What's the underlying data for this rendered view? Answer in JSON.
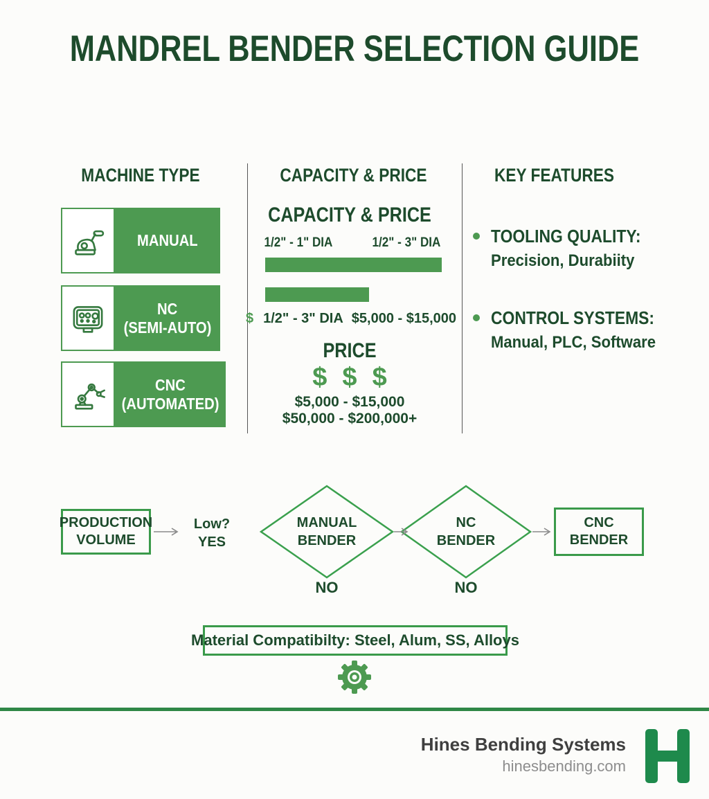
{
  "title": "MANDREL BENDER SELECTION GUIDE",
  "colors": {
    "dark_green": "#1d4b2c",
    "mid_green": "#4d9a51",
    "bright_green": "#3a9a4a",
    "logo_green": "#1e8a4c",
    "footer_line_green": "#2f8746",
    "footer_text_gray": "#3f3f3f",
    "footer_site_gray": "#8d8d8d",
    "arrow_gray": "#8a8a8a"
  },
  "machine_type": {
    "header": "MACHINE TYPE",
    "rows": [
      {
        "icon": "hand-crank-bender-icon",
        "line1": "MANUAL",
        "line2": ""
      },
      {
        "icon": "control-panel-icon",
        "line1": "NC",
        "line2": "(SEMI-AUTO)"
      },
      {
        "icon": "robot-arm-icon",
        "line1": "CNC",
        "line2": "(AUTOMATED)"
      }
    ]
  },
  "capacity": {
    "header": "CAPACITY & PRICE",
    "subheader": "CAPACITY & PRICE",
    "dia_left": "1/2\" - 1\" DIA",
    "dia_right": "1/2\" - 3\" DIA",
    "bar1_width": 255,
    "bar2_width": 150,
    "combo_dollar": "$",
    "combo_dia": "1/2\" - 3\" DIA",
    "combo_price": "$5,000 - $15,000",
    "price_header": "PRICE",
    "dollars": [
      "$",
      "$",
      "$"
    ],
    "price_range_1": "$5,000 - $15,000",
    "price_range_2": "$50,000 - $200,000+"
  },
  "key_features": {
    "header": "KEY FEATURES",
    "items": [
      {
        "title": "TOOLING QUALITY:",
        "desc": "Precision, Durabiity"
      },
      {
        "title": "CONTROL SYSTEMS:",
        "desc": "Manual, PLC, Software"
      }
    ]
  },
  "flowchart": {
    "start_line1": "PRODUCTION",
    "start_line2": "VOLUME",
    "condition_line1": "Low?",
    "condition_line2": "YES",
    "diamond1_line1": "MANUAL",
    "diamond1_line2": "BENDER",
    "diamond1_no": "NO",
    "diamond2_line1": "NC",
    "diamond2_line2": "BENDER",
    "diamond2_no": "NO",
    "end_line1": "CNC",
    "end_line2": "BENDER"
  },
  "material_bar": "Material Compatibilty: Steel, Alum, SS, Alloys",
  "footer": {
    "company": "Hines Bending Systems",
    "website": "hinesbending.com",
    "logo_letter": "H"
  }
}
